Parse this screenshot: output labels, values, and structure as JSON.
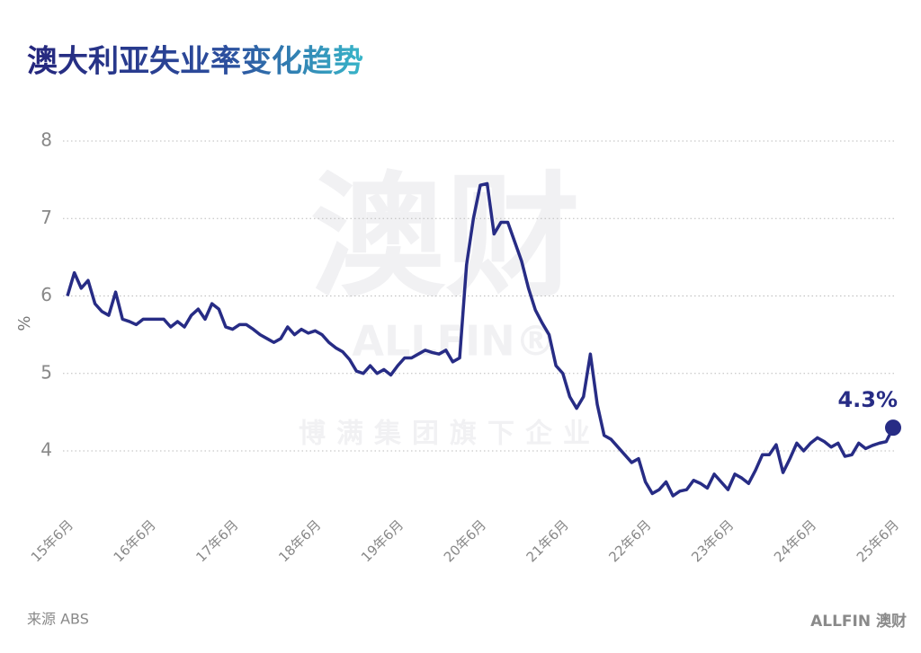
{
  "chart_data": {
    "type": "line",
    "title": "澳大利亚失业率变化趋势",
    "y_label": "%",
    "source": "来源 ABS",
    "logo": "ALLFIN 澳财",
    "watermark": [
      "澳财",
      "ALLFIN®",
      "博满集团旗下企业"
    ],
    "end_label": "4.3%",
    "categories": [
      "15年6月",
      null,
      null,
      null,
      null,
      null,
      null,
      null,
      null,
      null,
      null,
      null,
      "16年6月",
      null,
      null,
      null,
      null,
      null,
      null,
      null,
      null,
      null,
      null,
      null,
      "17年6月",
      null,
      null,
      null,
      null,
      null,
      null,
      null,
      null,
      null,
      null,
      null,
      "18年6月",
      null,
      null,
      null,
      null,
      null,
      null,
      null,
      null,
      null,
      null,
      null,
      "19年6月",
      null,
      null,
      null,
      null,
      null,
      null,
      null,
      null,
      null,
      null,
      null,
      "20年6月",
      null,
      null,
      null,
      null,
      null,
      null,
      null,
      null,
      null,
      null,
      null,
      "21年6月",
      null,
      null,
      null,
      null,
      null,
      null,
      null,
      null,
      null,
      null,
      null,
      "22年6月",
      null,
      null,
      null,
      null,
      null,
      null,
      null,
      null,
      null,
      null,
      null,
      "23年6月",
      null,
      null,
      null,
      null,
      null,
      null,
      null,
      null,
      null,
      null,
      null,
      "24年6月",
      null,
      null,
      null,
      null,
      null,
      null,
      null,
      null,
      null,
      null,
      null,
      "25年6月"
    ],
    "series": [
      {
        "name": "失业率",
        "color": "#272c85",
        "values": [
          6.0,
          6.3,
          6.1,
          6.2,
          5.9,
          5.8,
          5.75,
          6.05,
          5.7,
          5.67,
          5.63,
          5.7,
          5.7,
          5.7,
          5.7,
          5.6,
          5.67,
          5.6,
          5.75,
          5.83,
          5.7,
          5.9,
          5.83,
          5.6,
          5.57,
          5.63,
          5.63,
          5.57,
          5.5,
          5.45,
          5.4,
          5.45,
          5.6,
          5.5,
          5.57,
          5.52,
          5.55,
          5.5,
          5.4,
          5.33,
          5.28,
          5.18,
          5.03,
          5.0,
          5.1,
          5.0,
          5.05,
          4.98,
          5.1,
          5.2,
          5.2,
          5.25,
          5.3,
          5.27,
          5.25,
          5.3,
          5.15,
          5.2,
          6.4,
          7.0,
          7.43,
          7.45,
          6.8,
          6.95,
          6.95,
          6.7,
          6.45,
          6.1,
          5.82,
          5.65,
          5.5,
          5.1,
          5.0,
          4.7,
          4.55,
          4.7,
          5.25,
          4.6,
          4.2,
          4.15,
          4.05,
          3.95,
          3.85,
          3.9,
          3.6,
          3.45,
          3.5,
          3.6,
          3.42,
          3.48,
          3.5,
          3.62,
          3.58,
          3.52,
          3.7,
          3.6,
          3.5,
          3.7,
          3.65,
          3.58,
          3.75,
          3.95,
          3.95,
          4.08,
          3.72,
          3.9,
          4.1,
          4.0,
          4.1,
          4.17,
          4.12,
          4.05,
          4.1,
          3.93,
          3.95,
          4.1,
          4.03,
          4.07,
          4.1,
          4.12,
          4.3
        ]
      }
    ],
    "ylim": [
      3.3,
      8
    ],
    "yticks": [
      4,
      5,
      6,
      7,
      8
    ],
    "grid": true
  }
}
